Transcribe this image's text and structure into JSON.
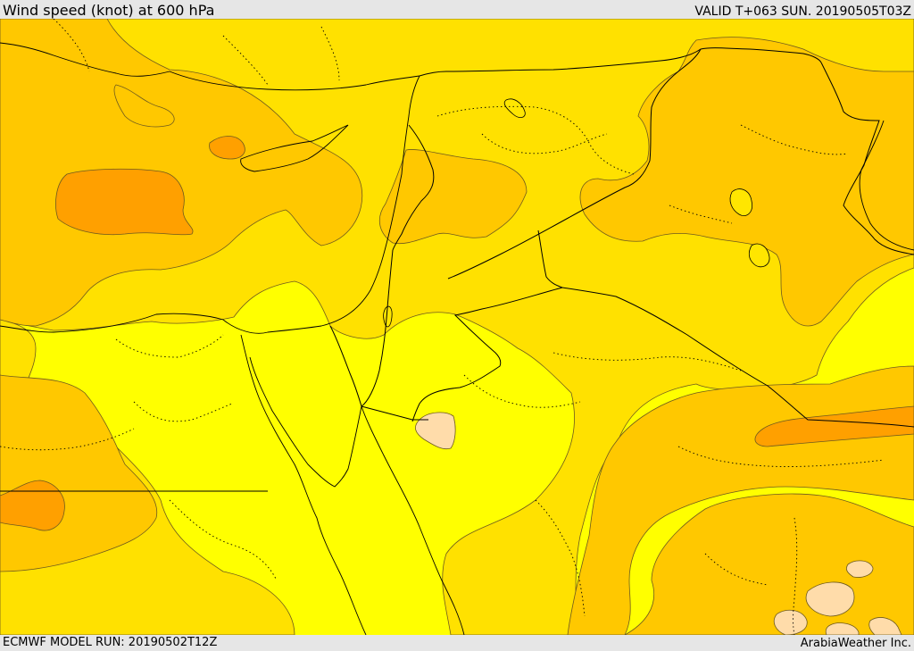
{
  "header": {
    "title": "Wind speed (knot) at 600 hPa",
    "valid_time": "VALID T+063 SUN. 20190505T03Z"
  },
  "footer": {
    "model_run": "ECMWF MODEL RUN: 20190502T12Z",
    "credit": "ArabiaWeather Inc."
  },
  "colors": {
    "background_yellow": "#ffff00",
    "light_gold": "#ffe100",
    "gold": "#ffc800",
    "orange": "#ffa000",
    "calm_patch": "#ffdcaa",
    "outline": "#000000"
  }
}
